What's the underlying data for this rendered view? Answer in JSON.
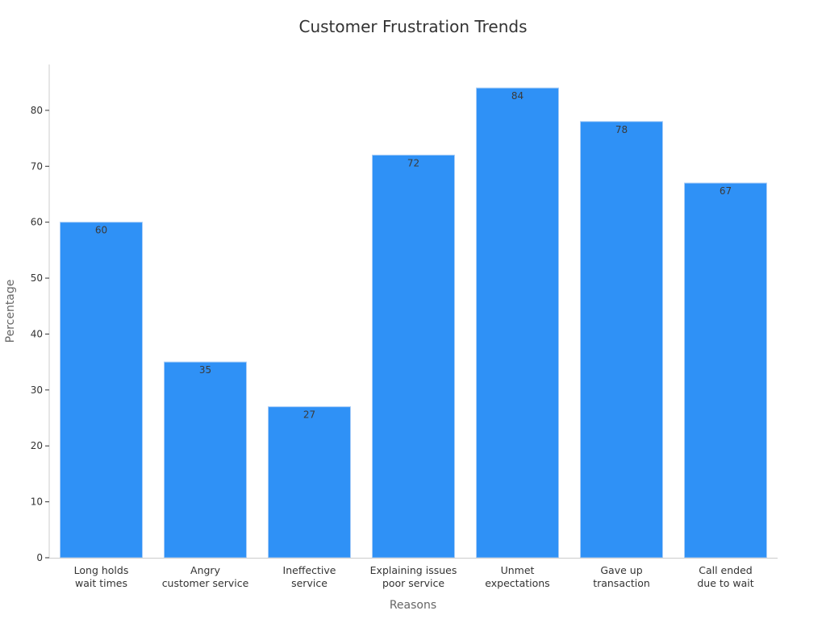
{
  "chart_data": {
    "type": "bar",
    "title": "Customer Frustration Trends",
    "xlabel": "Reasons",
    "ylabel": "Percentage",
    "categories": [
      [
        "Long holds",
        "wait times"
      ],
      [
        "Angry",
        "customer service"
      ],
      [
        "Ineffective",
        "service"
      ],
      [
        "Explaining issues",
        "poor service"
      ],
      [
        "Unmet",
        "expectations"
      ],
      [
        "Gave up",
        "transaction"
      ],
      [
        "Call ended",
        "due to wait"
      ]
    ],
    "values": [
      60,
      35,
      27,
      72,
      84,
      78,
      67
    ],
    "ylim": [
      0,
      88.2
    ],
    "yticks": [
      0,
      10,
      20,
      30,
      40,
      50,
      60,
      70,
      80
    ],
    "grid": false,
    "bar_color": "#2F91F6",
    "bar_edge_color": "#a9cdf7"
  }
}
